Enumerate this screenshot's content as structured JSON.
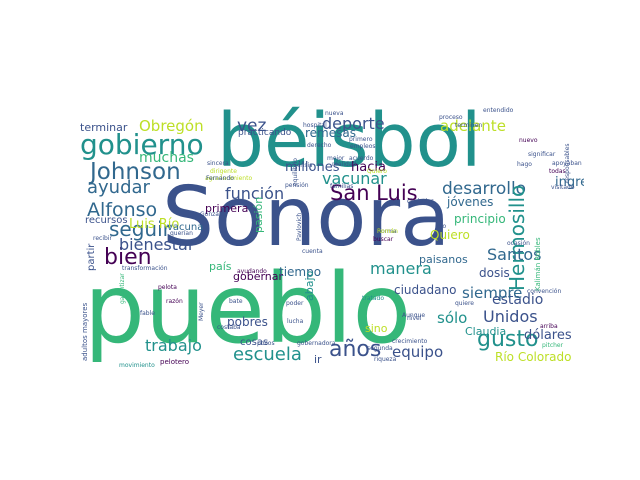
{
  "palette": {
    "dark_purple": "#440154",
    "indigo": "#3b528b",
    "blue": "#31688e",
    "teal": "#21918c",
    "sea_green": "#35b779",
    "green": "#5ec962",
    "lime": "#bddf26",
    "yellow": "#fde725"
  },
  "words": [
    {
      "text": "Sonora",
      "color": "indigo"
    },
    {
      "text": "béisbol",
      "color": "teal"
    },
    {
      "text": "pueblo",
      "color": "sea_green"
    },
    {
      "text": "gobierno",
      "color": "teal"
    },
    {
      "text": "Johnson",
      "color": "blue"
    },
    {
      "text": "Alfonso",
      "color": "blue"
    },
    {
      "text": "seguir",
      "color": "blue"
    },
    {
      "text": "bien",
      "color": "dark_purple"
    },
    {
      "text": "ayudar",
      "color": "blue"
    },
    {
      "text": "muchas",
      "color": "sea_green"
    },
    {
      "text": "Obregón",
      "color": "lime"
    },
    {
      "text": "deporte",
      "color": "indigo"
    },
    {
      "text": "vez",
      "color": "indigo"
    },
    {
      "text": "adelante",
      "color": "lime"
    },
    {
      "text": "San Luis",
      "color": "dark_purple"
    },
    {
      "text": "función",
      "color": "indigo"
    },
    {
      "text": "desarrollo",
      "color": "blue"
    },
    {
      "text": "Hermosillo",
      "color": "teal"
    },
    {
      "text": "Santos",
      "color": "blue"
    },
    {
      "text": "bienestar",
      "color": "indigo"
    },
    {
      "text": "Luis Río",
      "color": "lime"
    },
    {
      "text": "vacunar",
      "color": "teal"
    },
    {
      "text": "manera",
      "color": "teal"
    },
    {
      "text": "Unidos",
      "color": "indigo"
    },
    {
      "text": "estadio",
      "color": "indigo"
    },
    {
      "text": "gusto",
      "color": "teal"
    },
    {
      "text": "años",
      "color": "indigo"
    },
    {
      "text": "escuela",
      "color": "teal"
    },
    {
      "text": "trabajo",
      "color": "teal"
    },
    {
      "text": "equipo",
      "color": "indigo"
    },
    {
      "text": "sólo",
      "color": "teal"
    },
    {
      "text": "siempre",
      "color": "blue"
    },
    {
      "text": "ingresos",
      "color": "blue"
    },
    {
      "text": "jóvenes",
      "color": "blue"
    },
    {
      "text": "hacia",
      "color": "dark_purple"
    },
    {
      "text": "millones",
      "color": "indigo"
    },
    {
      "text": "remesas",
      "color": "blue"
    },
    {
      "text": "terminar",
      "color": "indigo"
    },
    {
      "text": "recursos",
      "color": "indigo"
    },
    {
      "text": "vacuna",
      "color": "blue"
    },
    {
      "text": "primera",
      "color": "dark_purple"
    },
    {
      "text": "pasión",
      "color": "sea_green"
    },
    {
      "text": "gobernar",
      "color": "dark_purple"
    },
    {
      "text": "tiempo",
      "color": "blue"
    },
    {
      "text": "abajo",
      "color": "teal"
    },
    {
      "text": "país",
      "color": "sea_green"
    },
    {
      "text": "ciudadano",
      "color": "indigo"
    },
    {
      "text": "Quiero",
      "color": "lime"
    },
    {
      "text": "principio",
      "color": "sea_green"
    },
    {
      "text": "paisanos",
      "color": "blue"
    },
    {
      "text": "dosis",
      "color": "indigo"
    },
    {
      "text": "pobres",
      "color": "indigo"
    },
    {
      "text": "cosas",
      "color": "indigo"
    },
    {
      "text": "Claudia",
      "color": "teal"
    },
    {
      "text": "dólares",
      "color": "indigo"
    },
    {
      "text": "Río Colorado",
      "color": "lime"
    },
    {
      "text": "sino",
      "color": "lime"
    },
    {
      "text": "ir",
      "color": "indigo"
    },
    {
      "text": "partir",
      "color": "indigo"
    },
    {
      "text": "practicando",
      "color": "indigo"
    },
    {
      "text": "nueva",
      "color": "indigo"
    },
    {
      "text": "mejor",
      "color": "indigo"
    },
    {
      "text": "nuevo",
      "color": "dark_purple"
    },
    {
      "text": "familias",
      "color": "indigo"
    },
    {
      "text": "pensión",
      "color": "indigo"
    },
    {
      "text": "Kalimán Robles",
      "color": "sea_green"
    },
    {
      "text": "adultos mayores",
      "color": "indigo"
    },
    {
      "text": "pelotero",
      "color": "dark_purple"
    },
    {
      "text": "movimiento",
      "color": "teal"
    },
    {
      "text": "transformación",
      "color": "indigo"
    },
    {
      "text": "ayudando",
      "color": "dark_purple"
    },
    {
      "text": "pelota",
      "color": "dark_purple"
    },
    {
      "text": "razón",
      "color": "dark_purple"
    },
    {
      "text": "bate",
      "color": "indigo"
    },
    {
      "text": "poder",
      "color": "indigo"
    },
    {
      "text": "tratado",
      "color": "teal"
    },
    {
      "text": "segunda",
      "color": "indigo"
    },
    {
      "text": "riqueza",
      "color": "indigo"
    },
    {
      "text": "buscar",
      "color": "dark_purple"
    },
    {
      "text": "forma",
      "color": "indigo"
    },
    {
      "text": "gobernadora",
      "color": "indigo"
    },
    {
      "text": "pocos",
      "color": "indigo"
    },
    {
      "text": "todas",
      "color": "dark_purple"
    },
    {
      "text": "hago",
      "color": "indigo"
    },
    {
      "text": "ocasión",
      "color": "indigo"
    },
    {
      "text": "acuerdo",
      "color": "indigo"
    },
    {
      "text": "derecho",
      "color": "indigo"
    },
    {
      "text": "primero",
      "color": "indigo"
    },
    {
      "text": "empleos",
      "color": "indigo"
    },
    {
      "text": "Quiero",
      "color": "lime"
    },
    {
      "text": "sincera",
      "color": "indigo"
    },
    {
      "text": "dirigente",
      "color": "lime"
    },
    {
      "text": "agradecimiento",
      "color": "lime"
    },
    {
      "text": "pitcher",
      "color": "sea_green"
    },
    {
      "text": "Román",
      "color": "lime"
    },
    {
      "text": "Pavlovich",
      "color": "indigo"
    },
    {
      "text": "querían",
      "color": "indigo"
    },
    {
      "text": "González",
      "color": "indigo"
    },
    {
      "text": "recibir",
      "color": "indigo"
    },
    {
      "text": "hospital",
      "color": "indigo"
    },
    {
      "text": "terminen",
      "color": "indigo"
    },
    {
      "text": "proceso",
      "color": "indigo"
    },
    {
      "text": "entendido",
      "color": "indigo"
    },
    {
      "text": "significar",
      "color": "indigo"
    },
    {
      "text": "responsables",
      "color": "indigo"
    },
    {
      "text": "visitado",
      "color": "indigo"
    },
    {
      "text": "apoyaban",
      "color": "indigo"
    },
    {
      "text": "arriba",
      "color": "dark_purple"
    },
    {
      "text": "Aunque",
      "color": "indigo"
    },
    {
      "text": "quiere",
      "color": "indigo"
    },
    {
      "text": "Meyer",
      "color": "indigo"
    },
    {
      "text": "Fernando",
      "color": "indigo"
    },
    {
      "text": "lucha",
      "color": "indigo"
    },
    {
      "text": "convención",
      "color": "indigo"
    },
    {
      "text": "garantizar",
      "color": "sea_green"
    },
    {
      "text": "fable",
      "color": "indigo"
    },
    {
      "text": "costaba",
      "color": "indigo"
    },
    {
      "text": "equilibrio",
      "color": "indigo"
    },
    {
      "text": "crisis",
      "color": "indigo"
    },
    {
      "text": "cuenta",
      "color": "indigo"
    },
    {
      "text": "ciudades",
      "color": "indigo"
    },
    {
      "text": "dio",
      "color": "indigo"
    },
    {
      "text": "crecimiento",
      "color": "indigo"
    },
    {
      "text": "realidad",
      "color": "indigo"
    },
    {
      "text": "nivel",
      "color": "indigo"
    }
  ]
}
